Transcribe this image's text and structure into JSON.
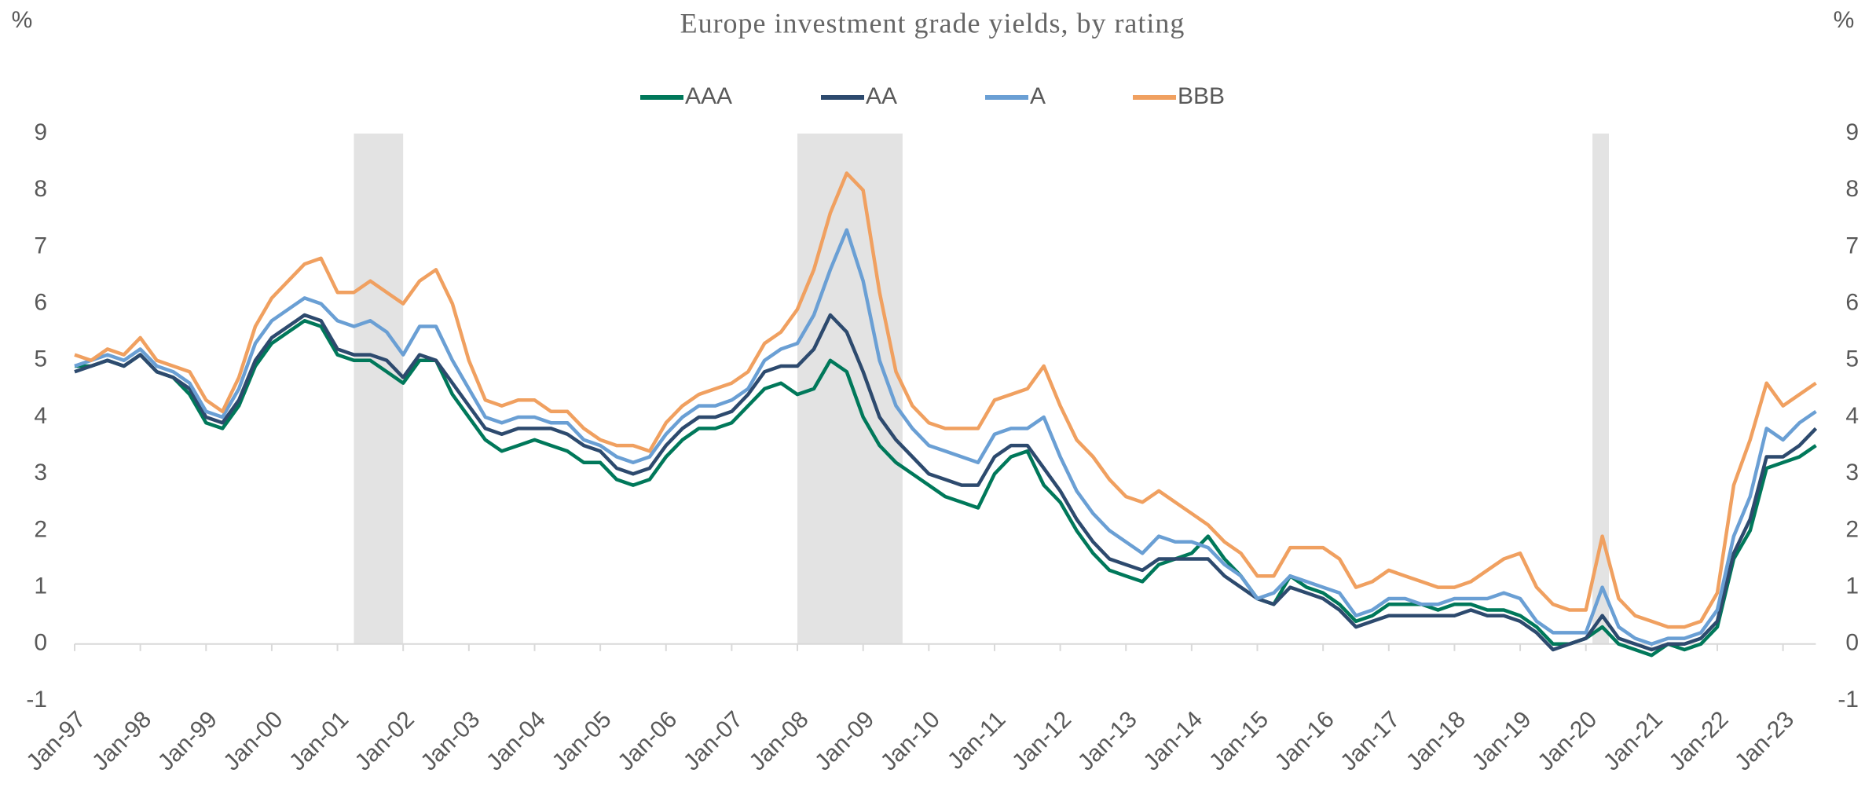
{
  "chart_data": {
    "type": "line",
    "title": "Europe investment grade yields, by rating",
    "ylabel": "%",
    "y2label": "%",
    "categories": [
      "Jan-97",
      null,
      null,
      null,
      "Jan-98",
      null,
      null,
      null,
      "Jan-99",
      null,
      null,
      null,
      "Jan-00",
      null,
      null,
      null,
      "Jan-01",
      null,
      null,
      null,
      "Jan-02",
      null,
      null,
      null,
      "Jan-03",
      null,
      null,
      null,
      "Jan-04",
      null,
      null,
      null,
      "Jan-05",
      null,
      null,
      null,
      "Jan-06",
      null,
      null,
      null,
      "Jan-07",
      null,
      null,
      null,
      "Jan-08",
      null,
      null,
      null,
      "Jan-09",
      null,
      null,
      null,
      "Jan-10",
      null,
      null,
      null,
      "Jan-11",
      null,
      null,
      null,
      "Jan-12",
      null,
      null,
      null,
      "Jan-13",
      null,
      null,
      null,
      "Jan-14",
      null,
      null,
      null,
      "Jan-15",
      null,
      null,
      null,
      "Jan-16",
      null,
      null,
      null,
      "Jan-17",
      null,
      null,
      null,
      "Jan-18",
      null,
      null,
      null,
      "Jan-19",
      null,
      null,
      null,
      "Jan-20",
      null,
      null,
      null,
      "Jan-21",
      null,
      null,
      null,
      "Jan-22",
      null,
      null,
      null,
      "Jan-23",
      null,
      null
    ],
    "series": [
      {
        "name": "AAA",
        "color": "#00785a",
        "values": [
          4.9,
          4.9,
          5.0,
          4.9,
          5.1,
          4.8,
          4.7,
          4.4,
          3.9,
          3.8,
          4.2,
          4.9,
          5.3,
          5.5,
          5.7,
          5.6,
          5.1,
          5.0,
          5.0,
          4.8,
          4.6,
          5.0,
          5.0,
          4.4,
          4.0,
          3.6,
          3.4,
          3.5,
          3.6,
          3.5,
          3.4,
          3.2,
          3.2,
          2.9,
          2.8,
          2.9,
          3.3,
          3.6,
          3.8,
          3.8,
          3.9,
          4.2,
          4.5,
          4.6,
          4.4,
          4.5,
          5.0,
          4.8,
          4.0,
          3.5,
          3.2,
          3.0,
          2.8,
          2.6,
          2.5,
          2.4,
          3.0,
          3.3,
          3.4,
          2.8,
          2.5,
          2.0,
          1.6,
          1.3,
          1.2,
          1.1,
          1.4,
          1.5,
          1.6,
          1.9,
          1.5,
          1.2,
          0.8,
          0.7,
          1.2,
          1.0,
          0.9,
          0.7,
          0.4,
          0.5,
          0.7,
          0.7,
          0.7,
          0.6,
          0.7,
          0.7,
          0.6,
          0.6,
          0.5,
          0.3,
          0.0,
          0.0,
          0.1,
          0.3,
          0.0,
          -0.1,
          -0.2,
          0.0,
          -0.1,
          0.0,
          0.3,
          1.5,
          2.0,
          3.1,
          3.2,
          3.3,
          3.5
        ]
      },
      {
        "name": "AA",
        "color": "#2d4a6e",
        "values": [
          4.8,
          4.9,
          5.0,
          4.9,
          5.1,
          4.8,
          4.7,
          4.5,
          4.0,
          3.9,
          4.3,
          5.0,
          5.4,
          5.6,
          5.8,
          5.7,
          5.2,
          5.1,
          5.1,
          5.0,
          4.7,
          5.1,
          5.0,
          4.6,
          4.2,
          3.8,
          3.7,
          3.8,
          3.8,
          3.8,
          3.7,
          3.5,
          3.4,
          3.1,
          3.0,
          3.1,
          3.5,
          3.8,
          4.0,
          4.0,
          4.1,
          4.4,
          4.8,
          4.9,
          4.9,
          5.2,
          5.8,
          5.5,
          4.8,
          4.0,
          3.6,
          3.3,
          3.0,
          2.9,
          2.8,
          2.8,
          3.3,
          3.5,
          3.5,
          3.1,
          2.7,
          2.2,
          1.8,
          1.5,
          1.4,
          1.3,
          1.5,
          1.5,
          1.5,
          1.5,
          1.2,
          1.0,
          0.8,
          0.7,
          1.0,
          0.9,
          0.8,
          0.6,
          0.3,
          0.4,
          0.5,
          0.5,
          0.5,
          0.5,
          0.5,
          0.6,
          0.5,
          0.5,
          0.4,
          0.2,
          -0.1,
          0.0,
          0.1,
          0.5,
          0.1,
          0.0,
          -0.1,
          0.0,
          0.0,
          0.1,
          0.4,
          1.6,
          2.2,
          3.3,
          3.3,
          3.5,
          3.8
        ]
      },
      {
        "name": "A",
        "color": "#6a9fd4",
        "values": [
          4.9,
          5.0,
          5.1,
          5.0,
          5.2,
          4.9,
          4.8,
          4.6,
          4.1,
          4.0,
          4.5,
          5.3,
          5.7,
          5.9,
          6.1,
          6.0,
          5.7,
          5.6,
          5.7,
          5.5,
          5.1,
          5.6,
          5.6,
          5.0,
          4.5,
          4.0,
          3.9,
          4.0,
          4.0,
          3.9,
          3.9,
          3.6,
          3.5,
          3.3,
          3.2,
          3.3,
          3.7,
          4.0,
          4.2,
          4.2,
          4.3,
          4.5,
          5.0,
          5.2,
          5.3,
          5.8,
          6.6,
          7.3,
          6.4,
          5.0,
          4.2,
          3.8,
          3.5,
          3.4,
          3.3,
          3.2,
          3.7,
          3.8,
          3.8,
          4.0,
          3.3,
          2.7,
          2.3,
          2.0,
          1.8,
          1.6,
          1.9,
          1.8,
          1.8,
          1.7,
          1.4,
          1.2,
          0.8,
          0.9,
          1.2,
          1.1,
          1.0,
          0.9,
          0.5,
          0.6,
          0.8,
          0.8,
          0.7,
          0.7,
          0.8,
          0.8,
          0.8,
          0.9,
          0.8,
          0.4,
          0.2,
          0.2,
          0.2,
          1.0,
          0.3,
          0.1,
          0.0,
          0.1,
          0.1,
          0.2,
          0.6,
          1.9,
          2.6,
          3.8,
          3.6,
          3.9,
          4.1
        ]
      },
      {
        "name": "BBB",
        "color": "#f0a060",
        "values": [
          5.1,
          5.0,
          5.2,
          5.1,
          5.4,
          5.0,
          4.9,
          4.8,
          4.3,
          4.1,
          4.7,
          5.6,
          6.1,
          6.4,
          6.7,
          6.8,
          6.2,
          6.2,
          6.4,
          6.2,
          6.0,
          6.4,
          6.6,
          6.0,
          5.0,
          4.3,
          4.2,
          4.3,
          4.3,
          4.1,
          4.1,
          3.8,
          3.6,
          3.5,
          3.5,
          3.4,
          3.9,
          4.2,
          4.4,
          4.5,
          4.6,
          4.8,
          5.3,
          5.5,
          5.9,
          6.6,
          7.6,
          8.3,
          8.0,
          6.2,
          4.8,
          4.2,
          3.9,
          3.8,
          3.8,
          3.8,
          4.3,
          4.4,
          4.5,
          4.9,
          4.2,
          3.6,
          3.3,
          2.9,
          2.6,
          2.5,
          2.7,
          2.5,
          2.3,
          2.1,
          1.8,
          1.6,
          1.2,
          1.2,
          1.7,
          1.7,
          1.7,
          1.5,
          1.0,
          1.1,
          1.3,
          1.2,
          1.1,
          1.0,
          1.0,
          1.1,
          1.3,
          1.5,
          1.6,
          1.0,
          0.7,
          0.6,
          0.6,
          1.9,
          0.8,
          0.5,
          0.4,
          0.3,
          0.3,
          0.4,
          0.9,
          2.8,
          3.6,
          4.6,
          4.2,
          4.4,
          4.6
        ]
      }
    ],
    "shaded_periods": [
      [
        17,
        20
      ],
      [
        44,
        50.4
      ],
      [
        92.4,
        93.4
      ]
    ],
    "ylim": [
      -1,
      9
    ],
    "yticks": [
      -1,
      0,
      1,
      2,
      3,
      4,
      5,
      6,
      7,
      8,
      9
    ],
    "y2lim": [
      -1,
      9
    ],
    "y2ticks": [
      -1,
      0,
      1,
      2,
      3,
      4,
      5,
      6,
      7,
      8,
      9
    ],
    "legend": "top"
  }
}
